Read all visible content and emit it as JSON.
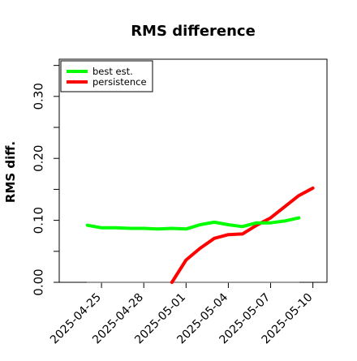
{
  "chart_data": {
    "type": "line",
    "title": "RMS difference",
    "ylabel": "RMS diff.",
    "xlabel": "",
    "ylim": [
      0.0,
      0.36
    ],
    "xlim": [
      "2025-04-22",
      "2025-05-11"
    ],
    "y_ticks": [
      0.0,
      0.1,
      0.2,
      0.3
    ],
    "y_tick_labels": [
      "0.00",
      "0.10",
      "0.20",
      "0.30"
    ],
    "x_ticks": [
      "2025-04-25",
      "2025-04-28",
      "2025-05-01",
      "2025-05-04",
      "2025-05-07",
      "2025-05-10"
    ],
    "x_tick_labels": [
      "2025-04-25",
      "2025-04-28",
      "2025-05-01",
      "2025-05-04",
      "2025-05-07",
      "2025-05-10"
    ],
    "grid": false,
    "legend_position": "top-left",
    "series": [
      {
        "name": "best est.",
        "color": "#00ff00",
        "x": [
          "2025-04-24",
          "2025-04-25",
          "2025-04-26",
          "2025-04-27",
          "2025-04-28",
          "2025-04-29",
          "2025-04-30",
          "2025-05-01",
          "2025-05-02",
          "2025-05-03",
          "2025-05-04",
          "2025-05-05",
          "2025-05-06",
          "2025-05-07",
          "2025-05-08",
          "2025-05-09"
        ],
        "y": [
          0.092,
          0.088,
          0.088,
          0.087,
          0.087,
          0.086,
          0.087,
          0.086,
          0.093,
          0.097,
          0.093,
          0.09,
          0.096,
          0.096,
          0.099,
          0.104
        ]
      },
      {
        "name": "persistence",
        "color": "#ff0000",
        "x": [
          "2025-04-30",
          "2025-05-01",
          "2025-05-02",
          "2025-05-03",
          "2025-05-04",
          "2025-05-05",
          "2025-05-06",
          "2025-05-07",
          "2025-05-08",
          "2025-05-09",
          "2025-05-10"
        ],
        "y": [
          0.0,
          0.036,
          0.055,
          0.071,
          0.077,
          0.078,
          0.092,
          0.104,
          0.122,
          0.14,
          0.152
        ]
      },
      {
        "name": "",
        "color": "#808080",
        "x": [
          "2025-04-24",
          "2025-05-09"
        ],
        "y": [
          0.0,
          0.0
        ]
      }
    ]
  }
}
